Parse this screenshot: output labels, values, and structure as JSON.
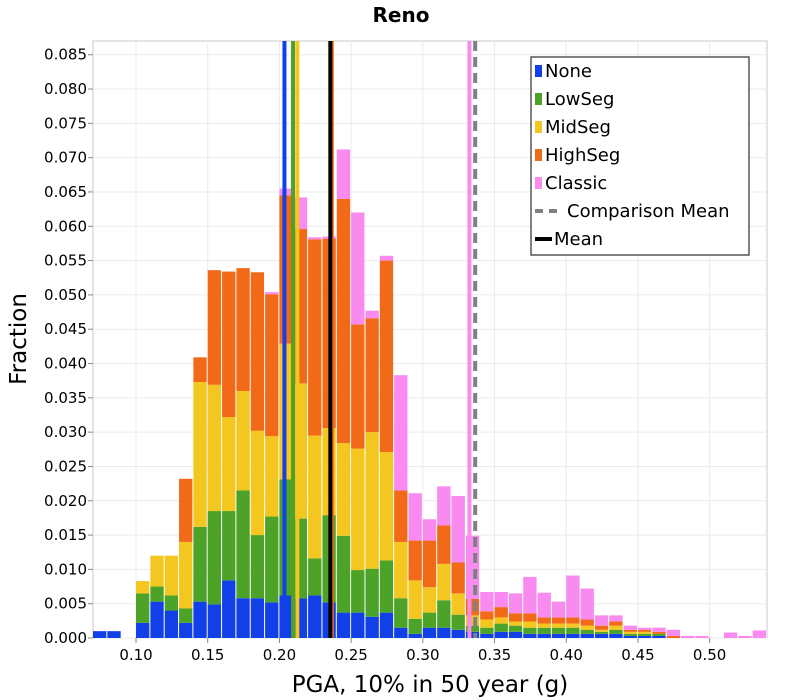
{
  "chart_data": {
    "type": "bar",
    "stacked": true,
    "title": "Reno",
    "xlabel": "PGA, 10% in 50 year (g)",
    "ylabel": "Fraction",
    "xlim": [
      0.07,
      0.54
    ],
    "ylim": [
      0,
      0.087
    ],
    "xticks": [
      "0.10",
      "0.15",
      "0.20",
      "0.25",
      "0.30",
      "0.35",
      "0.40",
      "0.45",
      "0.50"
    ],
    "yticks": [
      "0.000",
      "0.005",
      "0.010",
      "0.015",
      "0.020",
      "0.025",
      "0.030",
      "0.035",
      "0.040",
      "0.045",
      "0.050",
      "0.055",
      "0.060",
      "0.065",
      "0.070",
      "0.075",
      "0.080",
      "0.085"
    ],
    "grid": true,
    "legend_position": "top-right",
    "bin_width": 0.01,
    "bin_starts": [
      0.07,
      0.08,
      0.09,
      0.1,
      0.11,
      0.12,
      0.13,
      0.14,
      0.15,
      0.16,
      0.17,
      0.18,
      0.19,
      0.2,
      0.21,
      0.22,
      0.23,
      0.24,
      0.25,
      0.26,
      0.27,
      0.28,
      0.29,
      0.3,
      0.31,
      0.32,
      0.33,
      0.34,
      0.35,
      0.36,
      0.37,
      0.38,
      0.39,
      0.4,
      0.41,
      0.42,
      0.43,
      0.44,
      0.45,
      0.46,
      0.47,
      0.48,
      0.49,
      0.5,
      0.51,
      0.52,
      0.53
    ],
    "series": [
      {
        "name": "None",
        "color": "#1240e8",
        "values": [
          0.001,
          0.001,
          0,
          0.0022,
          0.0053,
          0.004,
          0.0022,
          0.0053,
          0.0049,
          0.0084,
          0.0058,
          0.0058,
          0.0052,
          0.0062,
          0.0058,
          0.0062,
          0.0052,
          0.0037,
          0.0037,
          0.0031,
          0.0037,
          0.0015,
          0.0006,
          0.0015,
          0.0015,
          0.0012,
          0.0009,
          0.0006,
          0.0009,
          0.0009,
          0.0006,
          0.0006,
          0.0006,
          0.0006,
          0.0006,
          0.0006,
          0.0006,
          0.0003,
          0.0003,
          0.0003,
          0,
          0,
          0,
          0,
          0,
          0,
          0
        ]
      },
      {
        "name": "LowSeg",
        "color": "#4da228",
        "values": [
          0,
          0,
          0,
          0.0043,
          0.0022,
          0.0022,
          0.0021,
          0.0109,
          0.0136,
          0.0101,
          0.0157,
          0.0092,
          0.0125,
          0.0169,
          0.0116,
          0.0054,
          0.0127,
          0.0112,
          0.0062,
          0.007,
          0.0076,
          0.0043,
          0.0022,
          0.0022,
          0.004,
          0.0022,
          0.0009,
          0.0009,
          0.0012,
          0.0009,
          0.0009,
          0.0009,
          0.0009,
          0.0009,
          0.0006,
          0.0003,
          0.0006,
          0.0003,
          0.0003,
          0.0003,
          0,
          0,
          0,
          0,
          0,
          0,
          0
        ]
      },
      {
        "name": "MidSeg",
        "color": "#f4c620",
        "values": [
          0,
          0,
          0,
          0.0018,
          0.0045,
          0.0058,
          0.0097,
          0.0211,
          0.0184,
          0.0137,
          0.0145,
          0.0152,
          0.0117,
          0.0198,
          0.0197,
          0.0179,
          0.0127,
          0.0135,
          0.0177,
          0.0199,
          0.0158,
          0.0082,
          0.0056,
          0.0037,
          0.0053,
          0.0031,
          0.0015,
          0.0012,
          0.0009,
          0.0006,
          0.0009,
          0.0006,
          0.0006,
          0.0006,
          0.0006,
          0.0003,
          0.0006,
          0.0003,
          0.0003,
          0,
          0,
          0,
          0,
          0,
          0,
          0,
          0
        ]
      },
      {
        "name": "HighSeg",
        "color": "#f26a18",
        "values": [
          0,
          0,
          0,
          0,
          0,
          0,
          0.0092,
          0.0036,
          0.0167,
          0.0212,
          0.0179,
          0.0231,
          0.0207,
          0.0216,
          0.0225,
          0.0286,
          0.0276,
          0.0356,
          0.0181,
          0.0166,
          0.0279,
          0.0075,
          0.0058,
          0.0068,
          0.0056,
          0.0045,
          0.0024,
          0.0012,
          0.0015,
          0.0012,
          0.0012,
          0.0009,
          0.0009,
          0.0009,
          0.0009,
          0.0006,
          0.0006,
          0.0003,
          0.0003,
          0.0003,
          0.0003,
          0,
          0,
          0,
          0,
          0,
          0
        ]
      },
      {
        "name": "Classic",
        "color": "#f88af0",
        "values": [
          0,
          0,
          0,
          0,
          0,
          0,
          0,
          0,
          0,
          0,
          0,
          0,
          0.0003,
          0.001,
          0.0046,
          0.0003,
          0.0003,
          0.0072,
          0.0163,
          0.0011,
          0.0007,
          0.0168,
          0.0069,
          0.0031,
          0.0057,
          0.0097,
          0.0092,
          0.0028,
          0.0022,
          0.0029,
          0.0053,
          0.0036,
          0.0023,
          0.0061,
          0.0045,
          0.0015,
          0.0009,
          0.0006,
          0.0003,
          0.0006,
          0.0009,
          0.0003,
          0.0003,
          0,
          0.0008,
          0.0003,
          0.0011
        ]
      }
    ],
    "lines": [
      {
        "x": 0.2035,
        "color": "#1240e8",
        "style": "solid"
      },
      {
        "x": 0.2095,
        "color": "#4da228",
        "style": "solid"
      },
      {
        "x": 0.2125,
        "color": "#f4c620",
        "style": "solid"
      },
      {
        "x": 0.2365,
        "color": "#f26a18",
        "style": "solid"
      },
      {
        "x": 0.3325,
        "color": "#f88af0",
        "style": "solid"
      },
      {
        "x": 0.2355,
        "color": "#000000",
        "style": "solid",
        "name": "Mean"
      },
      {
        "x": 0.3365,
        "color": "#808080",
        "style": "dashed",
        "name": "Comparison Mean"
      }
    ],
    "legend": [
      {
        "label": "None",
        "color": "#1240e8",
        "kind": "swatch"
      },
      {
        "label": "LowSeg",
        "color": "#4da228",
        "kind": "swatch"
      },
      {
        "label": "MidSeg",
        "color": "#f4c620",
        "kind": "swatch"
      },
      {
        "label": "HighSeg",
        "color": "#f26a18",
        "kind": "swatch"
      },
      {
        "label": "Classic",
        "color": "#f88af0",
        "kind": "swatch"
      },
      {
        "label": "Comparison Mean",
        "color": "#808080",
        "kind": "dashed"
      },
      {
        "label": "Mean",
        "color": "#000000",
        "kind": "line"
      }
    ]
  }
}
